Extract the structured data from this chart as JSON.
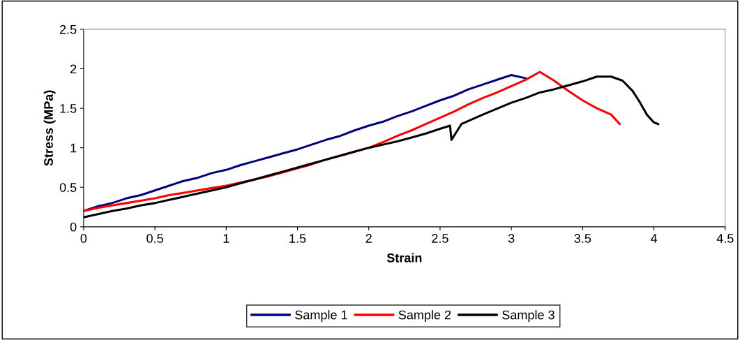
{
  "chart_data": {
    "type": "line",
    "xlabel": "Strain",
    "ylabel": "Stress (MPa)",
    "xlim": [
      0,
      4.5
    ],
    "xticks": [
      0,
      0.5,
      1,
      1.5,
      2,
      2.5,
      3,
      3.5,
      4,
      4.5
    ],
    "ylim": [
      0,
      2.5
    ],
    "yticks": [
      0,
      0.5,
      1,
      1.5,
      2,
      2.5
    ],
    "grid": false,
    "legend": "bottom",
    "marker": "none",
    "line_style": "solid",
    "series": [
      {
        "name": "Sample 1",
        "color": "#000080",
        "x": [
          0,
          0.1,
          0.2,
          0.3,
          0.4,
          0.5,
          0.6,
          0.7,
          0.8,
          0.9,
          1.0,
          1.1,
          1.2,
          1.3,
          1.4,
          1.5,
          1.6,
          1.7,
          1.8,
          1.9,
          2.0,
          2.1,
          2.2,
          2.3,
          2.4,
          2.5,
          2.6,
          2.7,
          2.8,
          2.9,
          3.0,
          3.1
        ],
        "values": [
          0.2,
          0.26,
          0.3,
          0.36,
          0.4,
          0.46,
          0.52,
          0.58,
          0.62,
          0.68,
          0.72,
          0.78,
          0.83,
          0.88,
          0.93,
          0.98,
          1.04,
          1.1,
          1.15,
          1.22,
          1.28,
          1.33,
          1.4,
          1.46,
          1.53,
          1.6,
          1.66,
          1.74,
          1.8,
          1.86,
          1.92,
          1.88
        ]
      },
      {
        "name": "Sample 2",
        "color": "#ff0000",
        "x": [
          0,
          0.1,
          0.2,
          0.3,
          0.4,
          0.5,
          0.6,
          0.7,
          0.8,
          0.9,
          1.0,
          1.1,
          1.2,
          1.3,
          1.4,
          1.5,
          1.6,
          1.7,
          1.8,
          1.9,
          2.0,
          2.1,
          2.2,
          2.3,
          2.4,
          2.5,
          2.6,
          2.7,
          2.8,
          2.9,
          3.0,
          3.1,
          3.2,
          3.3,
          3.4,
          3.5,
          3.6,
          3.7,
          3.76
        ],
        "values": [
          0.2,
          0.24,
          0.27,
          0.3,
          0.33,
          0.36,
          0.4,
          0.43,
          0.46,
          0.49,
          0.52,
          0.56,
          0.6,
          0.64,
          0.69,
          0.74,
          0.79,
          0.85,
          0.9,
          0.95,
          1.0,
          1.07,
          1.15,
          1.22,
          1.3,
          1.38,
          1.46,
          1.55,
          1.63,
          1.7,
          1.78,
          1.86,
          1.96,
          1.85,
          1.72,
          1.6,
          1.5,
          1.42,
          1.3
        ]
      },
      {
        "name": "Sample 3",
        "color": "#000000",
        "x": [
          0,
          0.1,
          0.2,
          0.3,
          0.4,
          0.5,
          0.6,
          0.7,
          0.8,
          0.9,
          1.0,
          1.1,
          1.2,
          1.3,
          1.4,
          1.5,
          1.6,
          1.7,
          1.8,
          1.9,
          2.0,
          2.1,
          2.2,
          2.3,
          2.4,
          2.5,
          2.57,
          2.58,
          2.65,
          2.8,
          3.0,
          3.1,
          3.2,
          3.3,
          3.4,
          3.5,
          3.6,
          3.7,
          3.78,
          3.85,
          3.9,
          3.95,
          4.0,
          4.03
        ],
        "values": [
          0.12,
          0.16,
          0.2,
          0.23,
          0.27,
          0.3,
          0.34,
          0.38,
          0.42,
          0.46,
          0.5,
          0.55,
          0.6,
          0.65,
          0.7,
          0.75,
          0.8,
          0.85,
          0.9,
          0.95,
          1.0,
          1.04,
          1.08,
          1.13,
          1.18,
          1.24,
          1.28,
          1.1,
          1.3,
          1.42,
          1.57,
          1.63,
          1.7,
          1.74,
          1.79,
          1.84,
          1.9,
          1.9,
          1.85,
          1.72,
          1.58,
          1.42,
          1.32,
          1.3
        ]
      }
    ]
  }
}
